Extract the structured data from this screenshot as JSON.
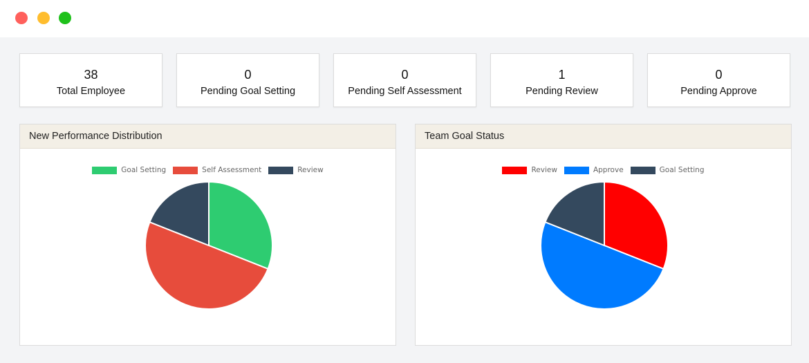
{
  "stats": [
    {
      "value": "38",
      "label": "Total Employee"
    },
    {
      "value": "0",
      "label": "Pending Goal Setting"
    },
    {
      "value": "0",
      "label": "Pending Self Assessment"
    },
    {
      "value": "1",
      "label": "Pending Review"
    },
    {
      "value": "0",
      "label": "Pending Approve"
    }
  ],
  "panels": [
    {
      "title": "New Performance Distribution"
    },
    {
      "title": "Team Goal Status"
    }
  ],
  "chart_data": [
    {
      "type": "pie",
      "title": "New Performance Distribution",
      "categories": [
        "Goal Setting",
        "Self Assessment",
        "Review"
      ],
      "values": [
        31,
        50,
        19
      ],
      "colors": [
        "#2ecc71",
        "#e74c3c",
        "#34495e"
      ],
      "legend": "top"
    },
    {
      "type": "pie",
      "title": "Team Goal Status",
      "categories": [
        "Review",
        "Approve",
        "Goal Setting"
      ],
      "values": [
        31,
        50,
        19
      ],
      "colors": [
        "#ff0000",
        "#007bff",
        "#34495e"
      ],
      "legend": "top"
    }
  ]
}
